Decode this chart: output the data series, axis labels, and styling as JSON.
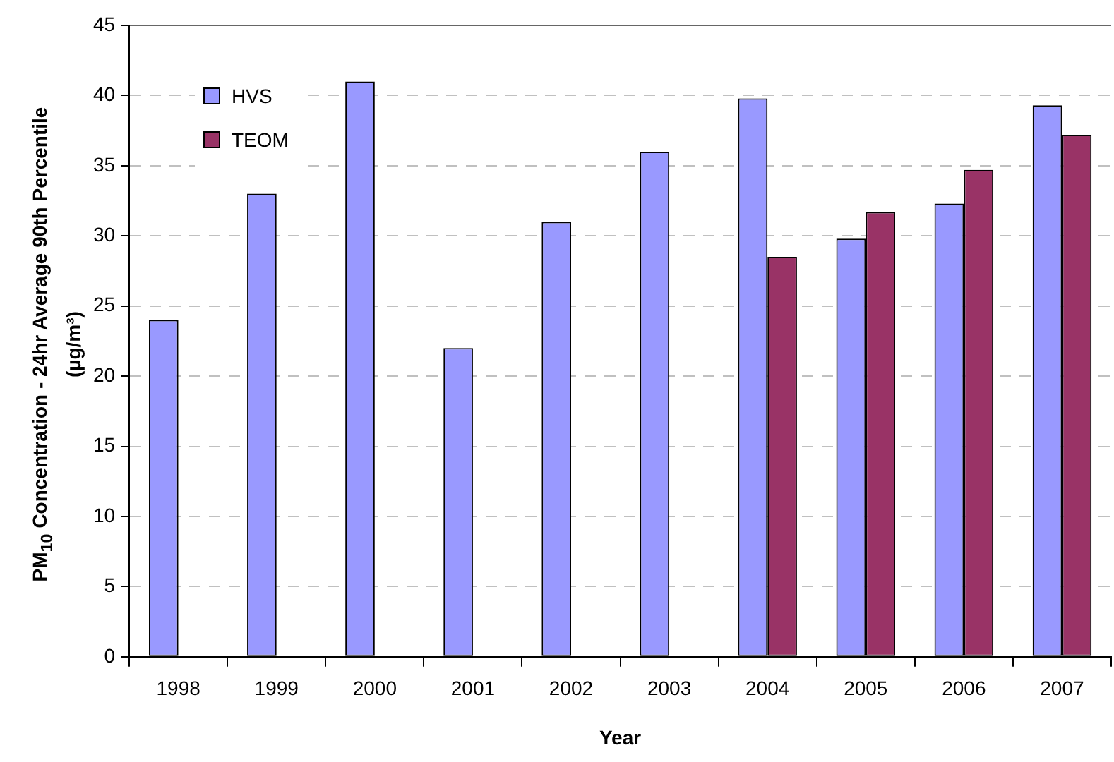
{
  "chart_data": {
    "type": "bar",
    "xlabel": "Year",
    "ylabel": "PM$_{10}$ Concentration - 24hr Average 90th Percentile\n(µg/m³)",
    "categories": [
      "1998",
      "1999",
      "2000",
      "2001",
      "2002",
      "2003",
      "2004",
      "2005",
      "2006",
      "2007"
    ],
    "series": [
      {
        "name": "HVS",
        "color": "#9999ff",
        "values": [
          24,
          33,
          41,
          22,
          31,
          36,
          39.8,
          29.8,
          32.3,
          39.3
        ]
      },
      {
        "name": "TEOM",
        "color": "#993366",
        "values": [
          null,
          null,
          null,
          null,
          null,
          null,
          28.5,
          31.7,
          34.7,
          37.2
        ]
      }
    ],
    "ylim": [
      0,
      45
    ],
    "yticks": [
      0,
      5,
      10,
      15,
      20,
      25,
      30,
      35,
      40,
      45
    ],
    "grid": "y",
    "legend": "top left"
  }
}
